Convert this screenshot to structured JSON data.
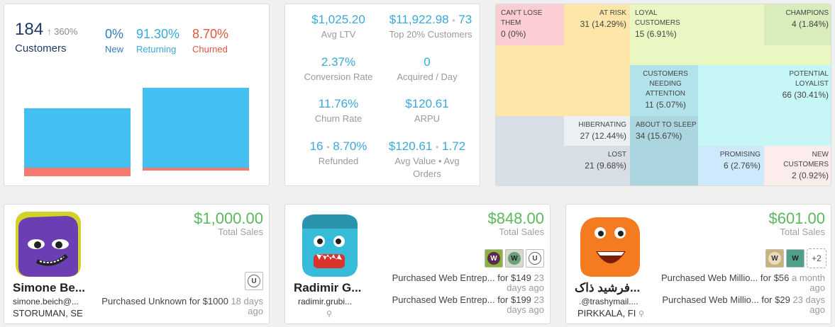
{
  "summary": {
    "customers_count": "184",
    "growth": "360%",
    "customers_label": "Customers",
    "new": {
      "value": "0%",
      "label": "New",
      "color": "#2f7bbf"
    },
    "returning": {
      "value": "91.30%",
      "label": "Returning",
      "color": "#3aa8d9"
    },
    "churned": {
      "value": "8.70%",
      "label": "Churned",
      "color": "#e2553e"
    },
    "colors": {
      "returning": "#44bff2",
      "churned": "#f57a6d"
    }
  },
  "metrics": [
    {
      "value": "$1,025.20",
      "label": "Avg LTV"
    },
    {
      "value": "$11,922.98",
      "value2": "73",
      "label": "Top 20% Customers"
    },
    {
      "value": "2.37%",
      "label": "Conversion Rate"
    },
    {
      "value": "0",
      "label": "Acquired / Day"
    },
    {
      "value": "11.76%",
      "label": "Churn Rate"
    },
    {
      "value": "$120.61",
      "label": "ARPU"
    },
    {
      "value": "16",
      "value2": "8.70%",
      "label": "Refunded"
    },
    {
      "value": "$120.61",
      "value2": "1.72",
      "label": "Avg Value • Avg Orders"
    }
  ],
  "segments": [
    {
      "title": "Can't lose them",
      "value": "0 (0%)",
      "color": "#fccdd2"
    },
    {
      "title": "At risk",
      "value": "31 (14.29%)",
      "color": "#fde6a8"
    },
    {
      "title": "Loyal customers",
      "value": "15 (6.91%)",
      "color": "#eaf7c2"
    },
    {
      "title": "Champions",
      "value": "4 (1.84%)",
      "color": "#d9ecbc"
    },
    {
      "title": "Customers needing attention",
      "value": "11 (5.07%)",
      "color": "#b3e3ea"
    },
    {
      "title": "Potential loyalist",
      "value": "66 (30.41%)",
      "color": "#c7f6f7"
    },
    {
      "title": "Hibernating",
      "value": "27 (12.44%)",
      "color": "#edf0f3"
    },
    {
      "title": "About to sleep",
      "value": "34 (15.67%)",
      "color": "#acd6df"
    },
    {
      "title": "Lost",
      "value": "21 (9.68%)",
      "color": "#d8dee5"
    },
    {
      "title": "Promising",
      "value": "6 (2.76%)",
      "color": "#cde9fb"
    },
    {
      "title": "New customers",
      "value": "2 (0.92%)",
      "color": "#fcecec"
    }
  ],
  "customers": [
    {
      "amount": "$1,000.00",
      "total_label": "Total Sales",
      "name": "Simone Be...",
      "email": "simone.beich@...",
      "location": "STORUMAN, SE",
      "products": [
        "U"
      ],
      "purchases": [
        {
          "item": "Purchased Unknown",
          "price": "for $1000",
          "ago": "18 days ago"
        }
      ]
    },
    {
      "amount": "$848.00",
      "total_label": "Total Sales",
      "name": "Radimir G...",
      "email": "radimir.grubi...",
      "location": "",
      "products": [
        "W",
        "W",
        "U"
      ],
      "purchases": [
        {
          "item": "Purchased Web Entrep...",
          "price": "for $149",
          "ago": "23 days ago"
        },
        {
          "item": "Purchased Web Entrep...",
          "price": "for $199",
          "ago": "23 days ago"
        }
      ]
    },
    {
      "amount": "$601.00",
      "total_label": "Total Sales",
      "name": "فرشید ذاک...",
      "email": ".@trashymail....",
      "location": "PIRKKALA, FI",
      "products": [
        "W",
        "W"
      ],
      "more": "+2",
      "purchases": [
        {
          "item": "Purchased Web Millio...",
          "price": "for $56",
          "ago": "a month ago"
        },
        {
          "item": "Purchased Web Millio...",
          "price": "for $29",
          "ago": "23 days ago"
        }
      ]
    }
  ]
}
